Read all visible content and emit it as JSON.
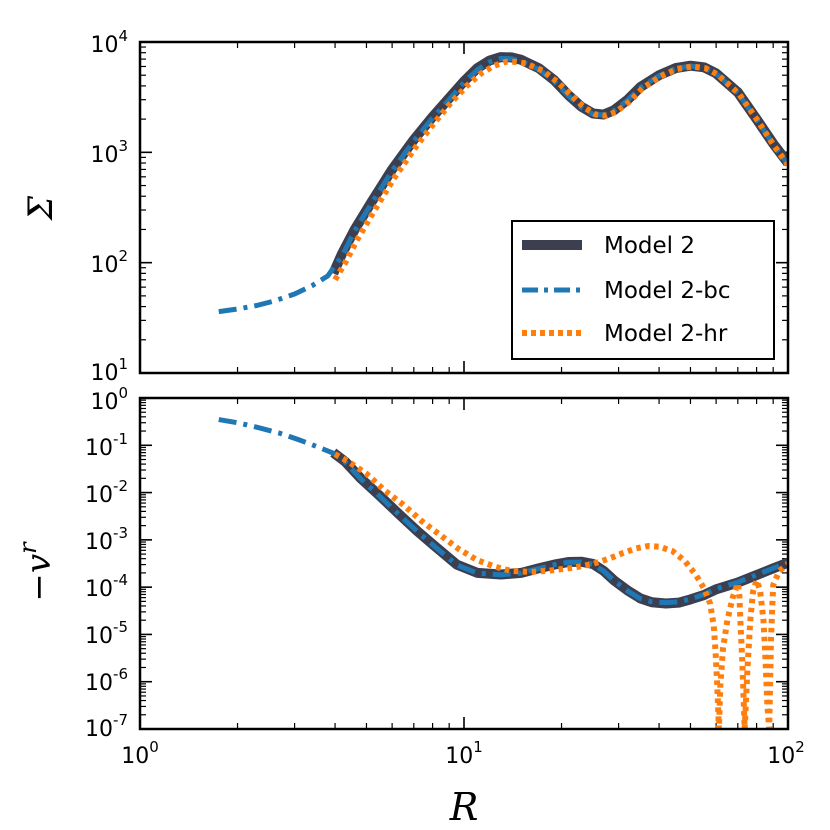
{
  "chart_data": [
    {
      "type": "line",
      "panel": "top",
      "ylabel": "Σ",
      "xscale": "log",
      "yscale": "log",
      "xlim": [
        1,
        100
      ],
      "ylim": [
        10,
        10000
      ],
      "ytick_labels": [
        {
          "base": "10",
          "exp": "1"
        },
        {
          "base": "10",
          "exp": "2"
        },
        {
          "base": "10",
          "exp": "3"
        },
        {
          "base": "10",
          "exp": "4"
        }
      ],
      "legend_position": "lower-right",
      "legend": [
        {
          "label": "Model 2",
          "series": "Model 2"
        },
        {
          "label": "Model 2-bc",
          "series": "Model 2-bc"
        },
        {
          "label": "Model 2-hr",
          "series": "Model 2-hr"
        }
      ],
      "series": [
        {
          "name": "Model 2",
          "color": "#3b3f4f",
          "style": "solid",
          "x": [
            3.95,
            4.2,
            4.6,
            5.2,
            6,
            7,
            8,
            9,
            10,
            11,
            12,
            13,
            14,
            15,
            17,
            19,
            21,
            23,
            25,
            27,
            29,
            32,
            35,
            40,
            45,
            50,
            55,
            60,
            70,
            80,
            90,
            100
          ],
          "y": [
            80,
            120,
            200,
            360,
            700,
            1300,
            2100,
            3100,
            4400,
            5800,
            6800,
            7300,
            7250,
            6900,
            5800,
            4500,
            3300,
            2600,
            2250,
            2200,
            2400,
            3000,
            3900,
            5000,
            5800,
            6100,
            5900,
            5200,
            3500,
            2000,
            1200,
            800
          ]
        },
        {
          "name": "Model 2-bc",
          "color": "#1f77b4",
          "style": "dashdot",
          "x": [
            1.75,
            2,
            2.3,
            2.6,
            3,
            3.4,
            3.8,
            4.2,
            4.6,
            5.2,
            6,
            7,
            8,
            9,
            10,
            11,
            12,
            13,
            14,
            15,
            17,
            19,
            21,
            23,
            25,
            27,
            29,
            32,
            35,
            40,
            45,
            50,
            55,
            60,
            70,
            80,
            90,
            100
          ],
          "y": [
            36,
            38,
            41,
            45,
            52,
            62,
            76,
            115,
            195,
            350,
            680,
            1270,
            2050,
            3000,
            4300,
            5600,
            6600,
            7100,
            7050,
            6700,
            5650,
            4400,
            3250,
            2550,
            2220,
            2180,
            2380,
            2980,
            3850,
            4950,
            5750,
            6050,
            5850,
            5150,
            3450,
            1980,
            1180,
            780
          ]
        },
        {
          "name": "Model 2-hr",
          "color": "#ff7f0e",
          "style": "dotted",
          "x": [
            4,
            4.3,
            4.7,
            5.3,
            6.1,
            7.1,
            8.1,
            9.1,
            10.2,
            11.3,
            12.4,
            13.4,
            14.4,
            15.5,
            17.5,
            19.5,
            21.5,
            23.5,
            25.5,
            27.5,
            29.5,
            32.5,
            35.5,
            40.5,
            45.5,
            50.5,
            55.5,
            60.5,
            70.5,
            80.5,
            90.5,
            100
          ],
          "y": [
            70,
            100,
            165,
            300,
            590,
            1120,
            1850,
            2800,
            4000,
            5200,
            6100,
            6600,
            6600,
            6400,
            5500,
            4300,
            3250,
            2550,
            2200,
            2150,
            2330,
            2900,
            3800,
            4900,
            5700,
            6000,
            5800,
            5100,
            3400,
            1950,
            1150,
            770
          ]
        }
      ]
    },
    {
      "type": "line",
      "panel": "bottom",
      "ylabel": "−v",
      "ylabel_sup": "r",
      "xlabel": "R",
      "xscale": "log",
      "yscale": "log",
      "xlim": [
        1,
        100
      ],
      "ylim": [
        1e-07,
        1
      ],
      "xtick_labels": [
        {
          "base": "10",
          "exp": "0"
        },
        {
          "base": "10",
          "exp": "1"
        },
        {
          "base": "10",
          "exp": "2"
        }
      ],
      "ytick_labels": [
        {
          "base": "10",
          "exp": "-7"
        },
        {
          "base": "10",
          "exp": "-6"
        },
        {
          "base": "10",
          "exp": "-5"
        },
        {
          "base": "10",
          "exp": "-4"
        },
        {
          "base": "10",
          "exp": "-3"
        },
        {
          "base": "10",
          "exp": "-2"
        },
        {
          "base": "10",
          "exp": "-1"
        },
        {
          "base": "10",
          "exp": "0"
        }
      ],
      "series": [
        {
          "name": "Model 2",
          "color": "#3b3f4f",
          "style": "solid",
          "x": [
            3.95,
            4.3,
            4.8,
            5.5,
            6.3,
            7.2,
            8.2,
            9.5,
            11,
            13,
            15,
            17,
            19,
            21,
            23,
            25,
            27,
            29,
            32,
            35,
            38,
            42,
            46,
            50,
            55,
            60,
            70,
            80,
            90,
            100
          ],
          "y": [
            0.07,
            0.045,
            0.02,
            0.0085,
            0.0035,
            0.0015,
            0.0007,
            0.0003,
            0.0002,
            0.000185,
            0.0002,
            0.00025,
            0.0003,
            0.00034,
            0.000345,
            0.00031,
            0.00022,
            0.00014,
            8.5e-05,
            5.8e-05,
            4.8e-05,
            4.5e-05,
            4.7e-05,
            5.5e-05,
            6.8e-05,
            9e-05,
            0.000125,
            0.00018,
            0.00025,
            0.00033
          ]
        },
        {
          "name": "Model 2-bc",
          "color": "#1f77b4",
          "style": "dashdot",
          "x": [
            1.75,
            2,
            2.3,
            2.7,
            3.1,
            3.5,
            3.95,
            4.3,
            4.8,
            5.5,
            6.3,
            7.2,
            8.2,
            9.5,
            11,
            13,
            15,
            17,
            19,
            21,
            23,
            25,
            27,
            29,
            32,
            35,
            38,
            42,
            46,
            50,
            55,
            60,
            70,
            80,
            90,
            100
          ],
          "y": [
            0.35,
            0.3,
            0.24,
            0.18,
            0.13,
            0.095,
            0.068,
            0.044,
            0.0195,
            0.0083,
            0.0034,
            0.00148,
            0.00068,
            0.000295,
            0.000197,
            0.000183,
            0.000198,
            0.000248,
            0.000298,
            0.000336,
            0.00034,
            0.000305,
            0.000218,
            0.000138,
            8.3e-05,
            5.7e-05,
            4.9e-05,
            4.7e-05,
            4.9e-05,
            5.6e-05,
            7e-05,
            9.2e-05,
            0.000127,
            0.000182,
            0.000252,
            0.000332
          ]
        },
        {
          "name": "Model 2-hr",
          "color": "#ff7f0e",
          "style": "dotted",
          "x": [
            4,
            4.4,
            5,
            5.7,
            6.5,
            7.4,
            8.4,
            9.6,
            11,
            12.5,
            14,
            16,
            18,
            20,
            22,
            25,
            28,
            31,
            34,
            37,
            40,
            44,
            48,
            52,
            55,
            57.5,
            59,
            59.8,
            60.5,
            61.2,
            61.8,
            63,
            65,
            67.5,
            70,
            70.8,
            71.4,
            72.3,
            73.5,
            75,
            76.5,
            78,
            80,
            82,
            84,
            85.2,
            86.4,
            87.5,
            88.6,
            90,
            94,
            100
          ],
          "y": [
            0.065,
            0.045,
            0.025,
            0.011,
            0.0055,
            0.0025,
            0.0013,
            0.00065,
            0.00037,
            0.00027,
            0.00022,
            0.00021,
            0.00022,
            0.00024,
            0.00026,
            0.00031,
            0.0004,
            0.00053,
            0.00066,
            0.00074,
            0.00072,
            0.00058,
            0.00036,
            0.00018,
            9.5e-05,
            4.5e-05,
            1.5e-05,
            4e-06,
            8e-07,
            1e-07,
            8e-07,
            5e-06,
            2e-05,
            6e-05,
            0.00012,
            6.5e-05,
            1.5e-05,
            2.5e-06,
            1e-07,
            2e-06,
            2e-05,
            8e-05,
            0.00014,
            8.5e-05,
            2e-05,
            3e-06,
            3e-07,
            1e-07,
            8e-06,
            0.00011,
            0.00022,
            0.00031
          ]
        }
      ]
    }
  ]
}
